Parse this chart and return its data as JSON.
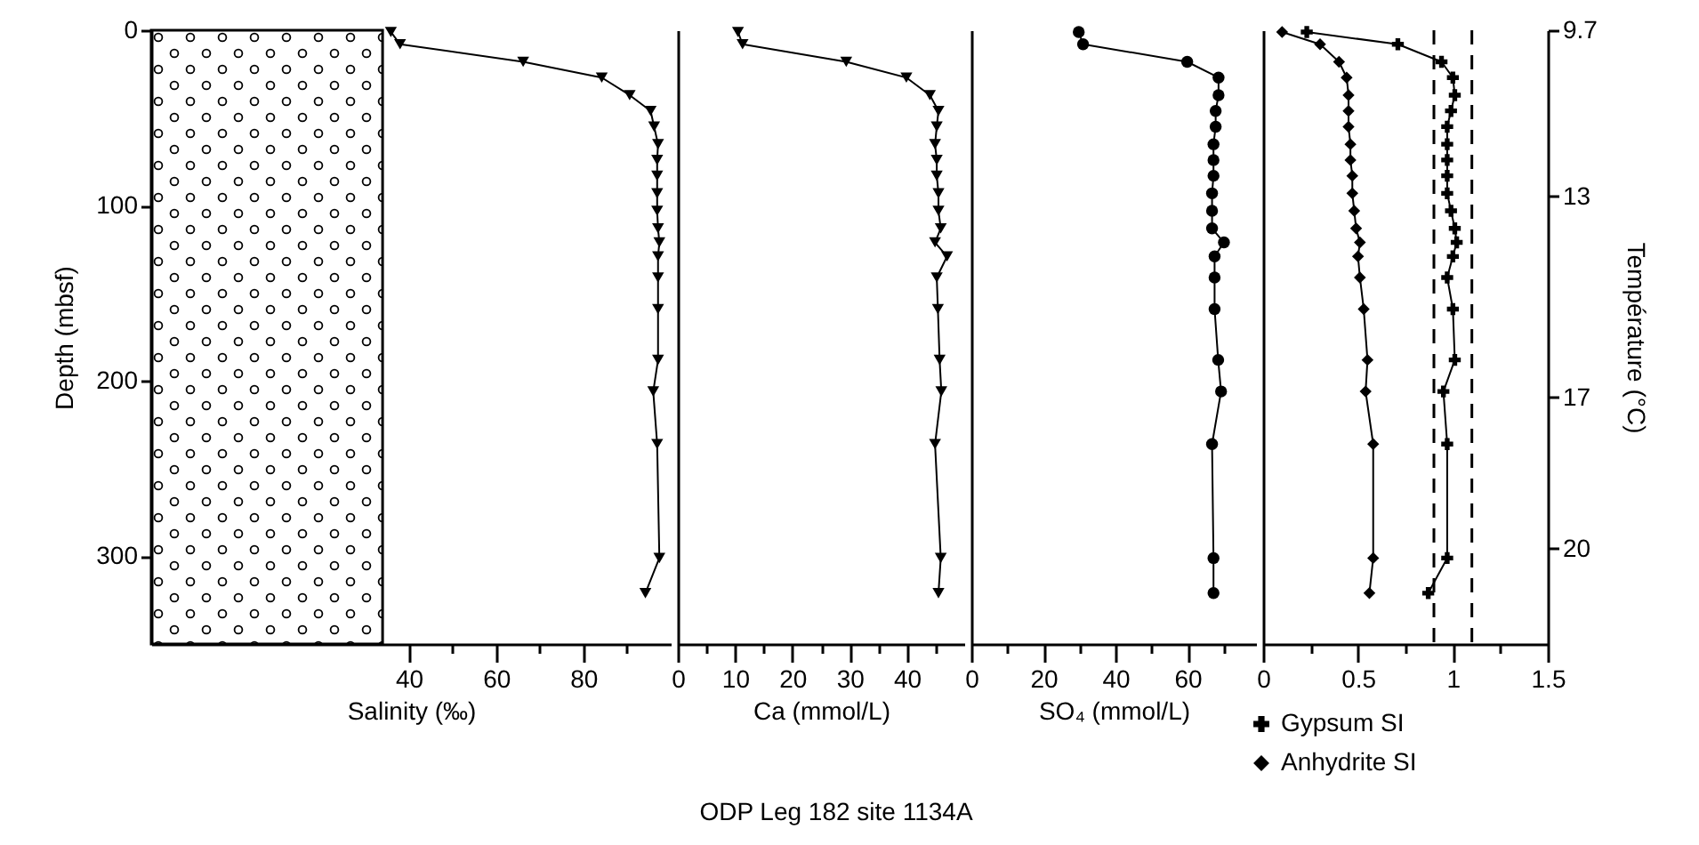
{
  "chart_data": [
    {
      "type": "line",
      "xlabel": "Salinity (‰)",
      "ylabel": "Depth (mbsf)",
      "xlim": [
        -19,
        100
      ],
      "xticks": [
        40,
        {
          "value": 50,
          "label": null
        },
        60,
        {
          "value": 70,
          "label": null
        },
        80,
        {
          "value": 90,
          "label": null
        }
      ],
      "ylim": [
        350,
        0
      ],
      "yticks": [
        0,
        100,
        200,
        300
      ],
      "grid": false,
      "legend": false,
      "bands": [
        {
          "axis": "x",
          "from": -19,
          "to": 34
        }
      ],
      "annotations": [
        "ODP Leg 182 site 1134A"
      ],
      "series": [
        {
          "color": "#000000",
          "marker": "triangle",
          "x": [
            35.9,
            38.0,
            66.2,
            84.2,
            90.6,
            95.4,
            96.2,
            97.1,
            96.9,
            96.9,
            96.9,
            96.9,
            97.1,
            97.4,
            97.1,
            97.1,
            97.1,
            97.1,
            96.0,
            96.9,
            97.4,
            94.2
          ],
          "values": [
            1,
            8,
            18,
            27,
            37,
            46,
            55,
            65,
            74,
            83,
            93,
            103,
            113,
            121,
            129,
            141,
            159,
            188,
            206,
            236,
            301,
            321
          ]
        }
      ]
    },
    {
      "type": "line",
      "xlabel": "Ca (mmol/L)",
      "xlim": [
        0,
        50
      ],
      "xticks": [
        0,
        {
          "value": 5,
          "label": null
        },
        10,
        {
          "value": 15,
          "label": null
        },
        20,
        {
          "value": 25,
          "label": null
        },
        30,
        {
          "value": 35,
          "label": null
        },
        40,
        {
          "value": 45,
          "label": null
        }
      ],
      "ylim": [
        350,
        0
      ],
      "grid": false,
      "legend": false,
      "series": [
        {
          "color": "#000000",
          "marker": "triangle",
          "x": [
            10.5,
            11.3,
            29.4,
            39.9,
            44.0,
            45.5,
            45.2,
            44.9,
            45.2,
            45.2,
            45.5,
            45.5,
            45.9,
            44.9,
            47.0,
            45.2,
            45.4,
            45.7,
            46.0,
            44.9,
            45.9,
            45.5
          ],
          "values": [
            1,
            8,
            18,
            27,
            37,
            46,
            55,
            65,
            74,
            83,
            93,
            103,
            113,
            121,
            129,
            141,
            159,
            188,
            206,
            236,
            301,
            321
          ]
        }
      ]
    },
    {
      "type": "line",
      "xlabel": "SO₄ (mmol/L)",
      "xlim": [
        0,
        79
      ],
      "xticks": [
        0,
        {
          "value": 10,
          "label": null
        },
        20,
        {
          "value": 30,
          "label": null
        },
        40,
        {
          "value": 50,
          "label": null
        },
        60,
        {
          "value": 70,
          "label": null
        }
      ],
      "ylim": [
        350,
        0
      ],
      "grid": false,
      "legend": false,
      "series": [
        {
          "color": "#000000",
          "marker": "circle",
          "x": [
            29.8,
            31.0,
            59.9,
            68.6,
            68.6,
            67.8,
            67.8,
            67.2,
            67.2,
            67.2,
            66.8,
            66.8,
            66.8,
            70.1,
            67.5,
            67.5,
            67.5,
            68.5,
            69.3,
            66.8,
            67.2,
            67.2
          ],
          "values": [
            1,
            8,
            18,
            27,
            37,
            46,
            55,
            65,
            74,
            83,
            93,
            103,
            113,
            121,
            129,
            141,
            159,
            188,
            206,
            236,
            301,
            321
          ]
        }
      ]
    },
    {
      "type": "line",
      "y2label": "Température (°C)",
      "xlim": [
        0,
        1.5
      ],
      "xticks": [
        0,
        {
          "value": 0.25,
          "label": null
        },
        0.5,
        {
          "value": 0.75,
          "label": null
        },
        1,
        {
          "value": 1.25,
          "label": null
        },
        1.5
      ],
      "ylim": [
        350,
        0
      ],
      "y2lim": [
        21.9,
        9.7
      ],
      "y2ticks": [
        9.7,
        13,
        17,
        20
      ],
      "grid": false,
      "legend": "bottom",
      "ref_lines": [
        {
          "axis": "x",
          "value": 0.9,
          "line_style": "dashed",
          "color": "#000000"
        },
        {
          "axis": "x",
          "value": 1.1,
          "line_style": "dashed",
          "color": "#000000"
        }
      ],
      "series": [
        {
          "name": "Gypsum SI",
          "color": "#000000",
          "marker": "cross",
          "x": [
            0.23,
            0.71,
            0.94,
            1.0,
            1.01,
            0.99,
            0.97,
            0.97,
            0.97,
            0.97,
            0.97,
            0.99,
            1.01,
            1.02,
            1.0,
            0.97,
            1.0,
            1.01,
            0.95,
            0.97,
            0.97,
            0.87
          ],
          "values": [
            1,
            8,
            18,
            27,
            37,
            46,
            55,
            65,
            74,
            83,
            93,
            103,
            113,
            121,
            129,
            141,
            159,
            188,
            206,
            236,
            301,
            321
          ]
        },
        {
          "name": "Anhydrite SI",
          "color": "#000000",
          "marker": "diamond",
          "x": [
            0.1,
            0.3,
            0.4,
            0.44,
            0.45,
            0.45,
            0.45,
            0.46,
            0.46,
            0.47,
            0.47,
            0.48,
            0.49,
            0.51,
            0.5,
            0.51,
            0.53,
            0.55,
            0.54,
            0.58,
            0.58,
            0.56
          ],
          "values": [
            1,
            8,
            18,
            27,
            37,
            46,
            55,
            65,
            74,
            83,
            93,
            103,
            113,
            121,
            129,
            141,
            159,
            188,
            206,
            236,
            301,
            321
          ]
        }
      ]
    }
  ]
}
